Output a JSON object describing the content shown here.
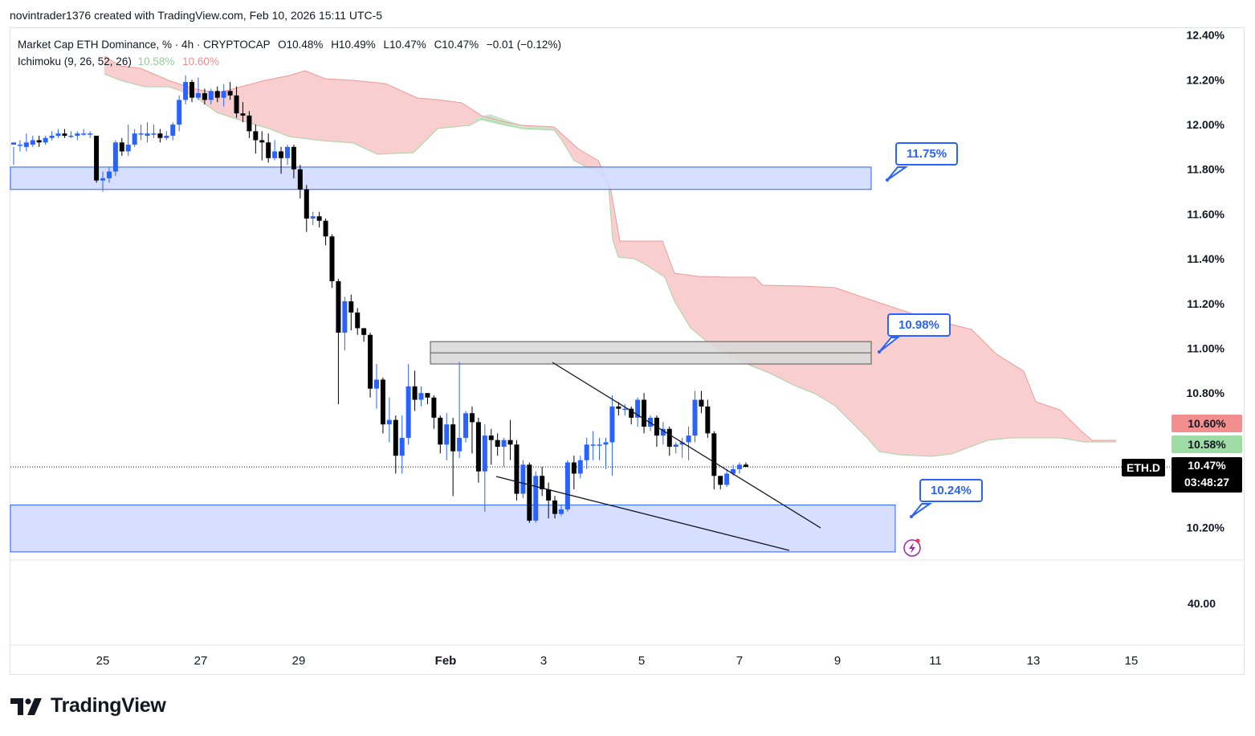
{
  "header": {
    "byline": "novintrader1376 created with TradingView.com, Feb 10, 2026 15:11 UTC-5"
  },
  "legend": {
    "symbol_line": "Market Cap ETH Dominance, % · 4h · CRYPTOCAP",
    "open": "O10.48%",
    "high": "H10.49%",
    "low": "L10.47%",
    "close": "C10.47%",
    "change": "−0.01 (−0.12%)",
    "indicator": "Ichimoku (9, 26, 52, 26)",
    "ich_value_a": "10.58%",
    "ich_value_b": "10.60%"
  },
  "price_tags": {
    "symbol": "ETH.D",
    "last": "10.47%",
    "countdown": "03:48:27",
    "span_b": "10.60%",
    "span_a": "10.58%"
  },
  "callouts": {
    "c1": "11.75%",
    "c2": "10.98%",
    "c3": "10.24%"
  },
  "footer": {
    "brand": "TradingView"
  },
  "colors": {
    "bull": "#2962ff",
    "bear": "#000000",
    "cloud_bear": "#f7c6c5",
    "cloud_bull": "#c8e6c9",
    "zone_blue": "#d1dcff",
    "zone_gray": "#d9d9d9"
  },
  "chart_data": {
    "type": "candlestick",
    "title": "Market Cap ETH Dominance, % · 4h · CRYPTOCAP",
    "y_ticks": [
      "12.40%",
      "12.20%",
      "12.00%",
      "11.80%",
      "11.60%",
      "11.40%",
      "11.20%",
      "11.00%",
      "10.80%",
      "10.20%"
    ],
    "y_ticks_values": [
      12.4,
      12.2,
      12.0,
      11.8,
      11.6,
      11.4,
      11.2,
      11.0,
      10.8,
      10.2
    ],
    "secondary_tick": "40.00",
    "ylim": [
      10.05,
      12.43
    ],
    "x_ticks": [
      {
        "label": "25",
        "day": 0
      },
      {
        "label": "27",
        "day": 2
      },
      {
        "label": "29",
        "day": 4
      },
      {
        "label": "Feb",
        "day": 7
      },
      {
        "label": "3",
        "day": 9
      },
      {
        "label": "5",
        "day": 11
      },
      {
        "label": "7",
        "day": 13
      },
      {
        "label": "9",
        "day": 15
      },
      {
        "label": "11",
        "day": 17
      },
      {
        "label": "13",
        "day": 19
      },
      {
        "label": "15",
        "day": 21
      }
    ],
    "candles": [
      [
        11.91,
        11.92,
        11.9,
        11.82
      ],
      [
        11.91,
        11.91,
        11.93,
        11.88
      ],
      [
        11.9,
        11.92,
        11.96,
        11.88
      ],
      [
        11.91,
        11.93,
        11.95,
        11.9
      ],
      [
        11.93,
        11.92,
        11.95,
        11.9
      ],
      [
        11.92,
        11.94,
        11.95,
        11.91
      ],
      [
        11.94,
        11.95,
        11.97,
        11.93
      ],
      [
        11.95,
        11.96,
        11.98,
        11.94
      ],
      [
        11.96,
        11.95,
        11.98,
        11.94
      ],
      [
        11.95,
        11.95,
        11.97,
        11.94
      ],
      [
        11.95,
        11.96,
        11.97,
        11.93
      ],
      [
        11.96,
        11.96,
        11.98,
        11.95
      ],
      [
        11.96,
        11.96,
        11.97,
        11.94
      ],
      [
        11.95,
        11.75,
        11.95,
        11.74
      ],
      [
        11.75,
        11.76,
        11.79,
        11.7
      ],
      [
        11.76,
        11.79,
        11.81,
        11.74
      ],
      [
        11.79,
        11.92,
        11.93,
        11.77
      ],
      [
        11.92,
        11.88,
        11.94,
        11.86
      ],
      [
        11.88,
        11.91,
        12.0,
        11.86
      ],
      [
        11.91,
        11.96,
        11.98,
        11.9
      ],
      [
        11.96,
        11.96,
        12.0,
        11.93
      ],
      [
        11.95,
        11.96,
        12.01,
        11.92
      ],
      [
        11.96,
        11.96,
        12.0,
        11.94
      ],
      [
        11.96,
        11.94,
        11.98,
        11.92
      ],
      [
        11.94,
        11.95,
        11.97,
        11.93
      ],
      [
        11.95,
        12.0,
        12.01,
        11.93
      ],
      [
        12.0,
        12.11,
        12.13,
        11.97
      ],
      [
        12.11,
        12.19,
        12.22,
        12.09
      ],
      [
        12.19,
        12.12,
        12.2,
        12.1
      ],
      [
        12.12,
        12.14,
        12.21,
        12.11
      ],
      [
        12.14,
        12.11,
        12.16,
        12.09
      ],
      [
        12.11,
        12.15,
        12.16,
        12.09
      ],
      [
        12.15,
        12.12,
        12.17,
        12.1
      ],
      [
        12.12,
        12.15,
        12.18,
        12.08
      ],
      [
        12.15,
        12.13,
        12.19,
        12.11
      ],
      [
        12.13,
        12.05,
        12.17,
        12.03
      ],
      [
        12.05,
        12.04,
        12.1,
        12.01
      ],
      [
        12.04,
        11.97,
        12.06,
        11.94
      ],
      [
        11.97,
        11.93,
        12.0,
        11.87
      ],
      [
        11.93,
        11.92,
        11.97,
        11.84
      ],
      [
        11.92,
        11.85,
        11.96,
        11.83
      ],
      [
        11.85,
        11.88,
        11.93,
        11.84
      ],
      [
        11.88,
        11.85,
        11.9,
        11.78
      ],
      [
        11.85,
        11.9,
        11.91,
        11.82
      ],
      [
        11.9,
        11.8,
        11.91,
        11.76
      ],
      [
        11.8,
        11.71,
        11.82,
        11.67
      ],
      [
        11.71,
        11.58,
        11.73,
        11.52
      ],
      [
        11.58,
        11.59,
        11.61,
        11.55
      ],
      [
        11.59,
        11.57,
        11.61,
        11.54
      ],
      [
        11.57,
        11.5,
        11.58,
        11.46
      ],
      [
        11.5,
        11.3,
        11.51,
        11.27
      ],
      [
        11.3,
        11.07,
        11.31,
        10.75
      ],
      [
        11.07,
        11.21,
        11.23,
        10.99
      ],
      [
        11.21,
        11.16,
        11.24,
        11.08
      ],
      [
        11.16,
        11.09,
        11.18,
        11.06
      ],
      [
        11.09,
        11.06,
        11.09,
        11.03
      ],
      [
        11.06,
        10.82,
        11.07,
        10.78
      ],
      [
        10.82,
        10.86,
        10.93,
        10.73
      ],
      [
        10.86,
        10.66,
        10.87,
        10.62
      ],
      [
        10.66,
        10.68,
        10.78,
        10.58
      ],
      [
        10.68,
        10.52,
        10.7,
        10.44
      ],
      [
        10.52,
        10.6,
        10.7,
        10.44
      ],
      [
        10.6,
        10.83,
        10.93,
        10.57
      ],
      [
        10.83,
        10.77,
        10.9,
        10.72
      ],
      [
        10.77,
        10.8,
        10.83,
        10.74
      ],
      [
        10.8,
        10.78,
        10.8,
        10.75
      ],
      [
        10.78,
        10.69,
        10.79,
        10.64
      ],
      [
        10.69,
        10.57,
        10.7,
        10.53
      ],
      [
        10.57,
        10.66,
        10.71,
        10.5
      ],
      [
        10.66,
        10.54,
        10.69,
        10.34
      ],
      [
        10.54,
        10.6,
        10.94,
        10.51
      ],
      [
        10.6,
        10.71,
        10.72,
        10.58
      ],
      [
        10.71,
        10.67,
        10.74,
        10.53
      ],
      [
        10.67,
        10.45,
        10.69,
        10.4
      ],
      [
        10.45,
        10.61,
        10.66,
        10.27
      ],
      [
        10.61,
        10.59,
        10.64,
        10.48
      ],
      [
        10.59,
        10.56,
        10.62,
        10.52
      ],
      [
        10.56,
        10.59,
        10.6,
        10.47
      ],
      [
        10.59,
        10.57,
        10.68,
        10.5
      ],
      [
        10.57,
        10.35,
        10.59,
        10.32
      ],
      [
        10.35,
        10.48,
        10.5,
        10.33
      ],
      [
        10.48,
        10.23,
        10.49,
        10.22
      ],
      [
        10.23,
        10.43,
        10.45,
        10.22
      ],
      [
        10.43,
        10.37,
        10.47,
        10.34
      ],
      [
        10.37,
        10.32,
        10.4,
        10.24
      ],
      [
        10.32,
        10.26,
        10.34,
        10.24
      ],
      [
        10.26,
        10.28,
        10.3,
        10.25
      ],
      [
        10.28,
        10.49,
        10.5,
        10.27
      ],
      [
        10.49,
        10.44,
        10.52,
        10.37
      ],
      [
        10.44,
        10.5,
        10.52,
        10.42
      ],
      [
        10.5,
        10.57,
        10.6,
        10.46
      ],
      [
        10.57,
        10.57,
        10.63,
        10.5
      ],
      [
        10.57,
        10.57,
        10.6,
        10.5
      ],
      [
        10.57,
        10.58,
        10.6,
        10.46
      ],
      [
        10.58,
        10.74,
        10.79,
        10.43
      ],
      [
        10.74,
        10.73,
        10.76,
        10.7
      ],
      [
        10.73,
        10.73,
        10.75,
        10.7
      ],
      [
        10.73,
        10.69,
        10.74,
        10.66
      ],
      [
        10.69,
        10.77,
        10.78,
        10.65
      ],
      [
        10.77,
        10.65,
        10.8,
        10.62
      ],
      [
        10.65,
        10.69,
        10.7,
        10.63
      ],
      [
        10.69,
        10.61,
        10.7,
        10.56
      ],
      [
        10.61,
        10.64,
        10.67,
        10.57
      ],
      [
        10.64,
        10.56,
        10.65,
        10.52
      ],
      [
        10.56,
        10.57,
        10.58,
        10.53
      ],
      [
        10.57,
        10.58,
        10.6,
        10.51
      ],
      [
        10.58,
        10.61,
        10.65,
        10.5
      ],
      [
        10.61,
        10.77,
        10.81,
        10.58
      ],
      [
        10.77,
        10.74,
        10.81,
        10.71
      ],
      [
        10.74,
        10.62,
        10.77,
        10.6
      ],
      [
        10.62,
        10.43,
        10.63,
        10.37
      ],
      [
        10.43,
        10.39,
        10.42,
        10.37
      ],
      [
        10.39,
        10.44,
        10.46,
        10.38
      ],
      [
        10.44,
        10.46,
        10.48,
        10.43
      ],
      [
        10.46,
        10.48,
        10.49,
        10.44
      ],
      [
        10.48,
        10.47,
        10.49,
        10.47
      ]
    ],
    "horizontal_lines": [
      {
        "label": "10.47%",
        "value": 10.47
      }
    ],
    "zones": [
      {
        "name": "resistance-zone-11.75",
        "from": 11.71,
        "to": 11.81
      },
      {
        "name": "gray-zone-10.98",
        "from": 10.93,
        "to": 11.03
      },
      {
        "name": "support-zone-10.24",
        "from": 10.09,
        "to": 10.3
      }
    ],
    "annotations": [
      "11.75%",
      "10.98%",
      "10.24%"
    ],
    "ichimoku": {
      "params": "9, 26, 52, 26",
      "span_a": 10.58,
      "span_b": 10.6
    }
  }
}
